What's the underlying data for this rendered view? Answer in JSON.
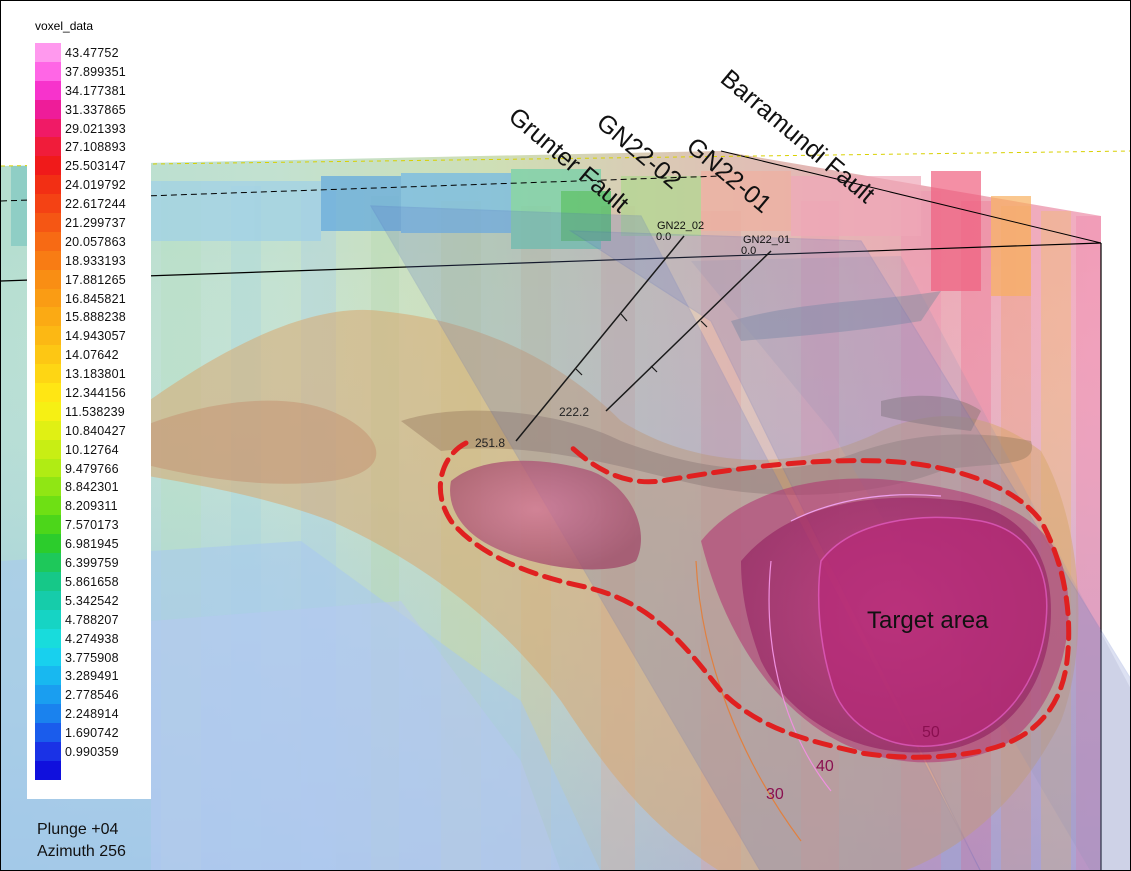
{
  "legend": {
    "title": "voxel_data",
    "items": [
      {
        "value": "43.47752",
        "color": "#ff99ee"
      },
      {
        "value": "37.899351",
        "color": "#ff66e6"
      },
      {
        "value": "34.177381",
        "color": "#f733cc"
      },
      {
        "value": "31.337865",
        "color": "#ee1c99"
      },
      {
        "value": "29.021393",
        "color": "#f01a66"
      },
      {
        "value": "27.108893",
        "color": "#f01c3a"
      },
      {
        "value": "25.503147",
        "color": "#f01a1a"
      },
      {
        "value": "24.019792",
        "color": "#f22f14"
      },
      {
        "value": "22.617244",
        "color": "#f44214"
      },
      {
        "value": "21.299737",
        "color": "#f55614"
      },
      {
        "value": "20.057863",
        "color": "#f76a14"
      },
      {
        "value": "18.933193",
        "color": "#f87c14"
      },
      {
        "value": "17.881265",
        "color": "#f98e14"
      },
      {
        "value": "16.845821",
        "color": "#fa9c14"
      },
      {
        "value": "15.888238",
        "color": "#fbaa14"
      },
      {
        "value": "14.943057",
        "color": "#fcb814"
      },
      {
        "value": "14.07642",
        "color": "#fdc714"
      },
      {
        "value": "13.183801",
        "color": "#fed614"
      },
      {
        "value": "12.344156",
        "color": "#ffe614"
      },
      {
        "value": "11.538239",
        "color": "#f6f014"
      },
      {
        "value": "10.840427",
        "color": "#e0f014"
      },
      {
        "value": "10.12764",
        "color": "#c8ee14"
      },
      {
        "value": "9.479766",
        "color": "#b0ec14"
      },
      {
        "value": "8.842301",
        "color": "#90e614"
      },
      {
        "value": "8.209311",
        "color": "#6ee014"
      },
      {
        "value": "7.570173",
        "color": "#4cd61a"
      },
      {
        "value": "6.981945",
        "color": "#2ccc2c"
      },
      {
        "value": "6.399759",
        "color": "#1ec85a"
      },
      {
        "value": "5.861658",
        "color": "#16c888"
      },
      {
        "value": "5.342542",
        "color": "#16ccaa"
      },
      {
        "value": "4.788207",
        "color": "#16d4c4"
      },
      {
        "value": "4.274938",
        "color": "#18dcdc"
      },
      {
        "value": "3.775908",
        "color": "#18d0ee"
      },
      {
        "value": "3.289491",
        "color": "#18b8f0"
      },
      {
        "value": "2.778546",
        "color": "#1a9ef0"
      },
      {
        "value": "2.248914",
        "color": "#1a82ee"
      },
      {
        "value": "1.690742",
        "color": "#1a5cec"
      },
      {
        "value": "0.990359",
        "color": "#1a32e6"
      },
      {
        "value": "",
        "color": "#1010dd"
      }
    ]
  },
  "view": {
    "plunge": "Plunge +04",
    "azimuth": "Azimuth 256"
  },
  "annotations": {
    "grunter_fault": "Grunter Fault",
    "barramundi_fault": "Barramundi Fault",
    "gn22_02": "GN22-02",
    "gn22_01": "GN22-01",
    "target_area": "Target area"
  },
  "drillholes": {
    "hole_02_label": "GN22_02",
    "hole_02_collar_depth": "0.0",
    "hole_02_end_depth": "251.8",
    "hole_01_label": "GN22_01",
    "hole_01_collar_depth": "0.0",
    "hole_01_end_depth": "222.2"
  },
  "contours": {
    "c30": "30",
    "c40": "40",
    "c50": "50"
  },
  "colors": {
    "target_outline": "#e02020",
    "fault_plane": "#5a74c8",
    "contour_label": "#8a1050"
  }
}
